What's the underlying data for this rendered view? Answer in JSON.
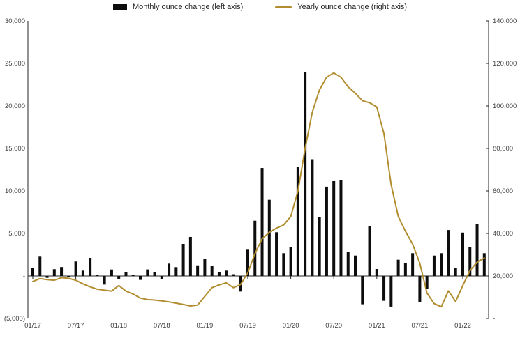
{
  "legend": {
    "items": [
      {
        "id": "monthly",
        "label": "Monthly ounce change (left axis)",
        "swatch": "bar"
      },
      {
        "id": "yearly",
        "label": "Yearly ounce change (right axis)",
        "swatch": "line"
      }
    ]
  },
  "chart_data": {
    "type": "combo",
    "title": "",
    "grid": false,
    "legend_position": "top",
    "categories": [
      "01/17",
      "02/17",
      "03/17",
      "04/17",
      "05/17",
      "06/17",
      "07/17",
      "08/17",
      "09/17",
      "10/17",
      "11/17",
      "12/17",
      "01/18",
      "02/18",
      "03/18",
      "04/18",
      "05/18",
      "06/18",
      "07/18",
      "08/18",
      "09/18",
      "10/18",
      "11/18",
      "12/18",
      "01/19",
      "02/19",
      "03/19",
      "04/19",
      "05/19",
      "06/19",
      "07/19",
      "08/19",
      "09/19",
      "10/19",
      "11/19",
      "12/19",
      "01/20",
      "02/20",
      "03/20",
      "04/20",
      "05/20",
      "06/20",
      "07/20",
      "08/20",
      "09/20",
      "10/20",
      "11/20",
      "12/20",
      "01/21",
      "02/21",
      "03/21",
      "04/21",
      "05/21",
      "06/21",
      "07/21",
      "08/21",
      "09/21",
      "10/21",
      "11/21",
      "12/21",
      "01/22",
      "02/22",
      "03/22",
      "04/22"
    ],
    "series": [
      {
        "name": "Monthly ounce change (left axis)",
        "type": "bar",
        "axis": "left",
        "values": [
          950,
          2270,
          -220,
          800,
          1050,
          -150,
          1700,
          630,
          2130,
          150,
          -1010,
          760,
          -330,
          490,
          150,
          -460,
          770,
          490,
          -330,
          1450,
          1040,
          3770,
          4590,
          1250,
          1990,
          1170,
          490,
          630,
          200,
          -1830,
          3090,
          6500,
          12700,
          8960,
          5140,
          2680,
          3360,
          12830,
          24000,
          13730,
          6950,
          10500,
          11150,
          11280,
          2870,
          2400,
          -3330,
          5900,
          820,
          -2920,
          -3600,
          1910,
          1500,
          2680,
          -3060,
          -1550,
          2400,
          2680,
          5400,
          900,
          5100,
          3360,
          6100,
          2680
        ]
      },
      {
        "name": "Yearly ounce change (right axis)",
        "type": "line",
        "axis": "right",
        "values": [
          17400,
          18800,
          18300,
          18000,
          19200,
          18900,
          18000,
          16300,
          14900,
          13800,
          13300,
          12900,
          15500,
          12900,
          11500,
          9600,
          8900,
          8700,
          8300,
          7800,
          7200,
          6600,
          5900,
          6300,
          10400,
          14500,
          15800,
          16800,
          14500,
          16000,
          21500,
          30500,
          37500,
          40500,
          42500,
          44000,
          48000,
          60000,
          80000,
          97000,
          107500,
          113500,
          115500,
          113500,
          109000,
          106000,
          102500,
          101500,
          99500,
          87000,
          63000,
          48000,
          41000,
          35000,
          26000,
          12000,
          7000,
          5500,
          13000,
          8000,
          15500,
          22500,
          26500,
          28500
        ]
      }
    ],
    "left_axis": {
      "labels": [
        "30,000",
        "25,000",
        "20,000",
        "15,000",
        "10,000",
        "5,000",
        "-",
        "(5,000)"
      ],
      "values": [
        30000,
        25000,
        20000,
        15000,
        10000,
        5000,
        0,
        -5000
      ],
      "range": [
        -5000,
        30000
      ]
    },
    "right_axis": {
      "labels": [
        "140,000",
        "120,000",
        "100,000",
        "80,000",
        "60,000",
        "40,000",
        "20,000",
        "-"
      ],
      "values": [
        140000,
        120000,
        100000,
        80000,
        60000,
        40000,
        20000,
        0
      ],
      "range": [
        0,
        140000
      ]
    },
    "x_ticks": {
      "labels": [
        "01/17",
        "07/17",
        "01/18",
        "07/18",
        "01/19",
        "07/19",
        "01/20",
        "07/20",
        "01/21",
        "07/21",
        "01/22"
      ],
      "indices": [
        0,
        6,
        12,
        18,
        24,
        30,
        36,
        42,
        48,
        54,
        60
      ]
    },
    "colors": {
      "bar": "#0d0d0d",
      "line": "#b28d2f",
      "axis": "#262626",
      "text": "#404040"
    }
  }
}
